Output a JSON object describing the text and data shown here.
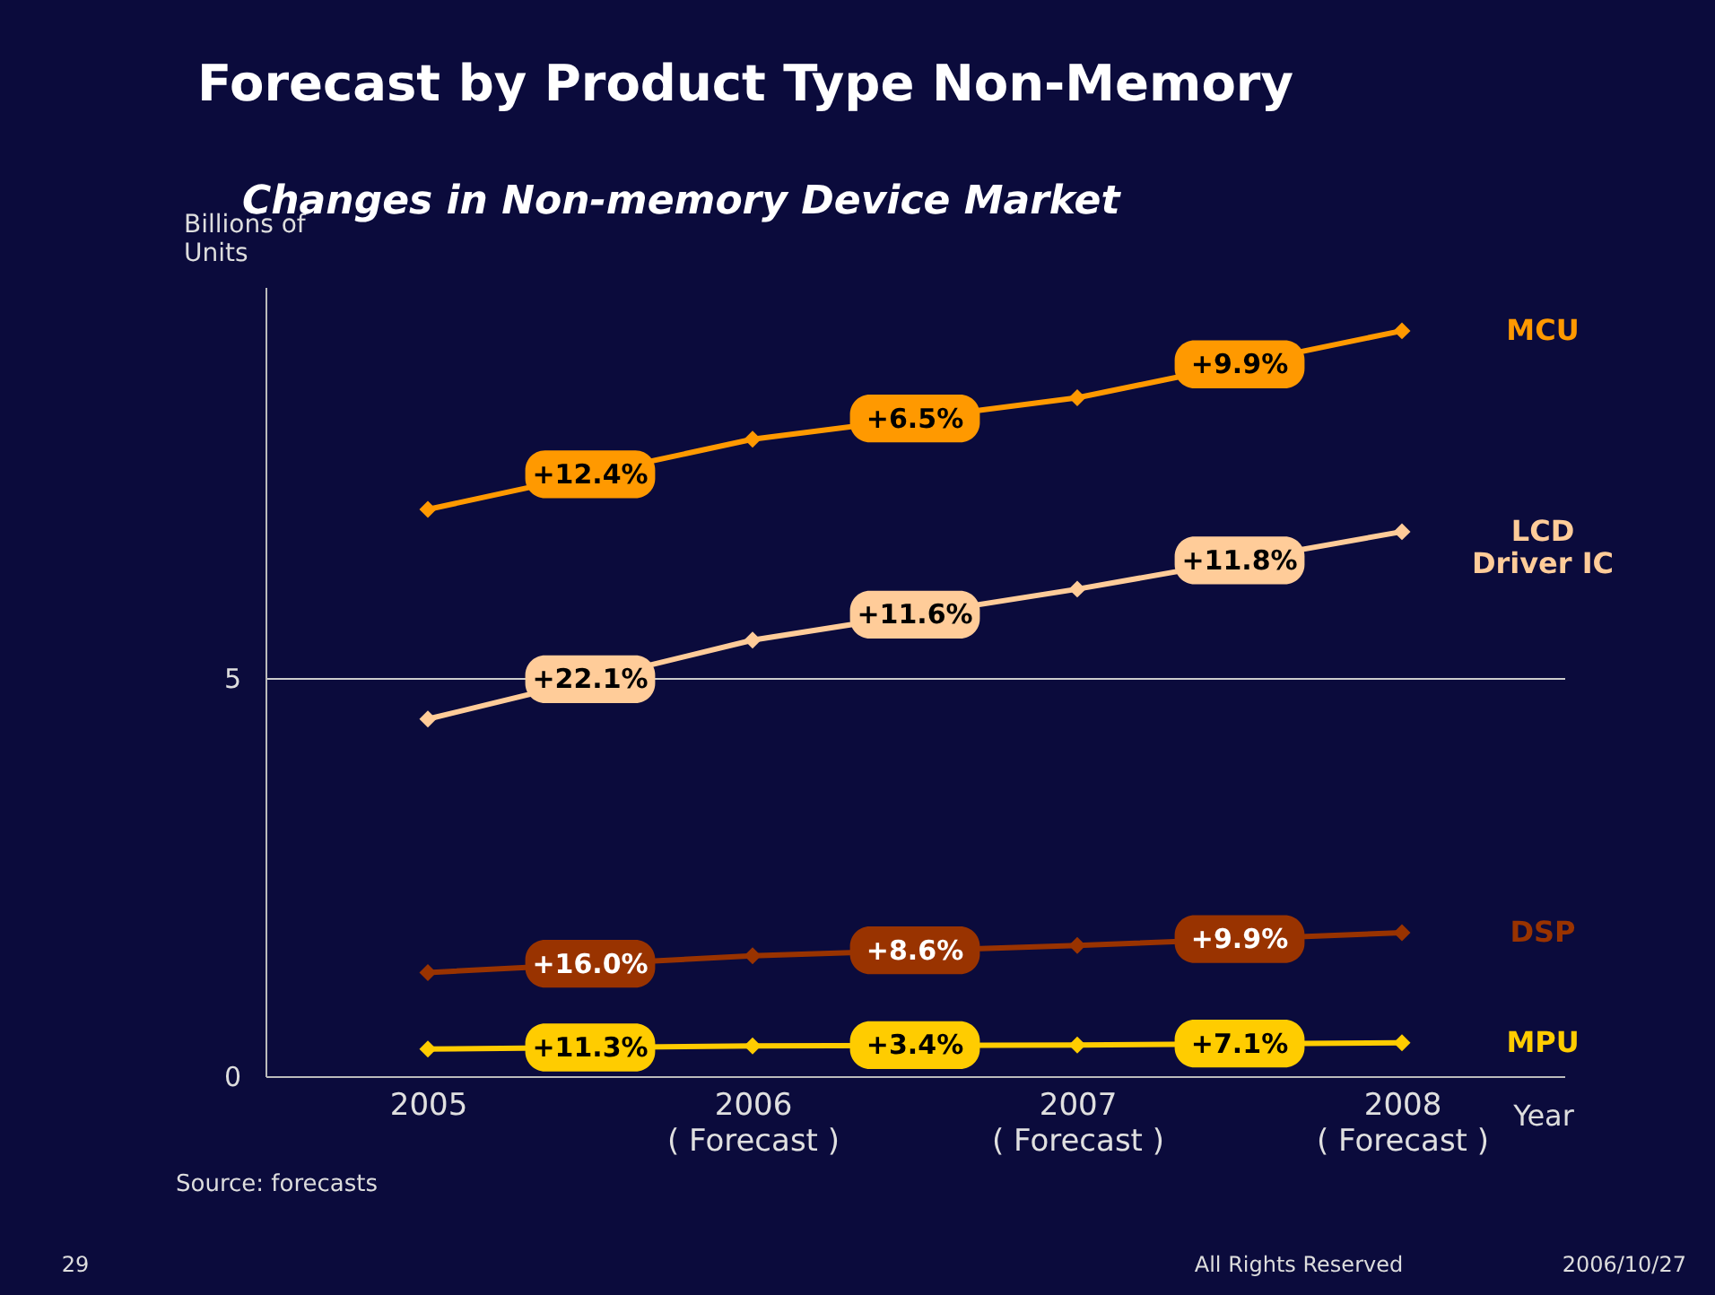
{
  "chart_data": {
    "type": "line",
    "title": "Forecast by Product Type  Non-Memory",
    "subtitle": "Changes in Non-memory Device Market",
    "ylabel": "Billions of\nUnits",
    "xlabel": "Year",
    "x": [
      2005,
      2006,
      2007,
      2008
    ],
    "xlim": [
      2004.5,
      2008.5
    ],
    "xticks": [
      2005,
      {
        "value": 2006,
        "label": "2006\n( Forecast )"
      },
      {
        "value": 2007,
        "label": "2007\n( Forecast )"
      },
      {
        "value": 2008,
        "label": "2008\n( Forecast )"
      }
    ],
    "ylim": [
      0,
      9.9
    ],
    "yticks": [
      0,
      5
    ],
    "grid": "y",
    "marker": "diamond",
    "line_style": "solid",
    "series": [
      {
        "name": "MCU",
        "color": "#ff9900",
        "values": [
          7.11,
          7.99,
          8.51,
          9.35
        ]
      },
      {
        "name": "LCD\nDriver IC",
        "color": "#ffcc99",
        "values": [
          4.48,
          5.47,
          6.11,
          6.83
        ]
      },
      {
        "name": "DSP",
        "color": "#993300",
        "values": [
          1.3,
          1.51,
          1.64,
          1.8
        ]
      },
      {
        "name": "MPU",
        "color": "#ffcc00",
        "values": [
          0.34,
          0.38,
          0.39,
          0.42
        ]
      }
    ],
    "annotations": [
      {
        "text": "+12.4%",
        "x": 2005.5,
        "y": 7.55
      },
      {
        "text": "+6.5%",
        "x": 2006.5,
        "y": 8.25
      },
      {
        "text": "+9.9%",
        "x": 2007.5,
        "y": 8.93
      },
      {
        "text": "+22.1%",
        "x": 2005.5,
        "y": 4.98
      },
      {
        "text": "+11.6%",
        "x": 2006.5,
        "y": 5.79
      },
      {
        "text": "+11.8%",
        "x": 2007.5,
        "y": 6.47
      },
      {
        "text": "+16.0%",
        "x": 2005.5,
        "y": 1.41
      },
      {
        "text": "+8.6%",
        "x": 2006.5,
        "y": 1.58
      },
      {
        "text": "+9.9%",
        "x": 2007.5,
        "y": 1.72
      },
      {
        "text": "+11.3%",
        "x": 2005.5,
        "y": 0.36
      },
      {
        "text": "+3.4%",
        "x": 2006.5,
        "y": 0.39
      },
      {
        "text": "+7.1%",
        "x": 2007.5,
        "y": 0.41
      },
      "Source: forecasts",
      "29",
      "All Rights Reserved",
      "2006/10/27"
    ]
  }
}
